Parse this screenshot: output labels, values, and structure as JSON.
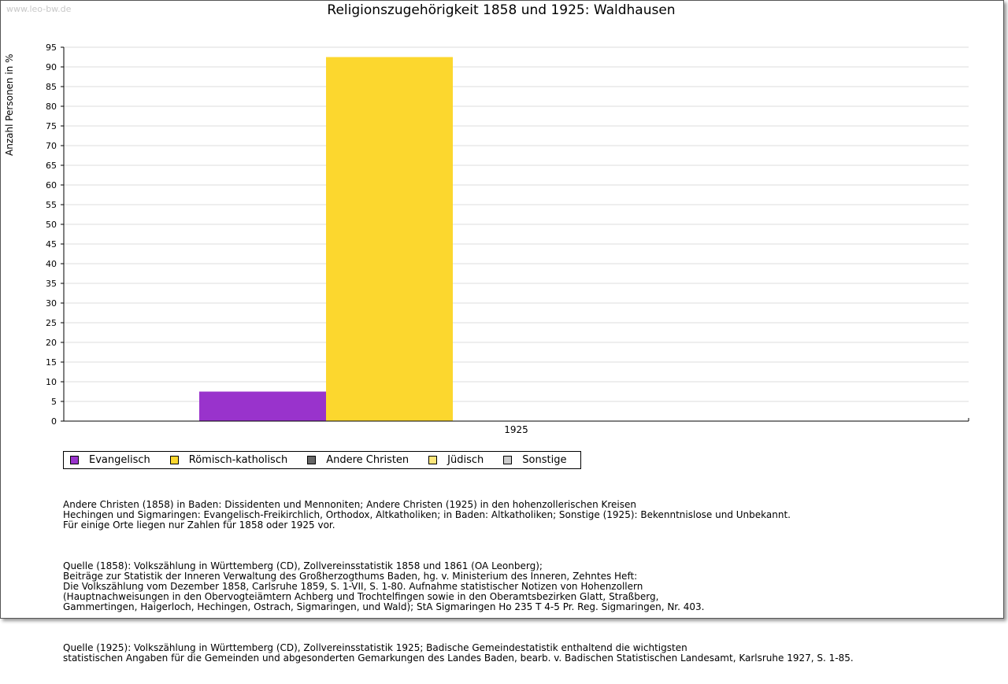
{
  "watermark": "www.leo-bw.de",
  "chart_data": {
    "type": "bar",
    "title": "Religionszugehörigkeit 1858 und 1925: Waldhausen",
    "xlabel": "",
    "ylabel": "Anzahl Personen in %",
    "categories": [
      "1925"
    ],
    "ylim": [
      0,
      95
    ],
    "yticks": [
      0,
      5,
      10,
      15,
      20,
      25,
      30,
      35,
      40,
      45,
      50,
      55,
      60,
      65,
      70,
      75,
      80,
      85,
      90,
      95
    ],
    "grid": true,
    "series": [
      {
        "name": "Evangelisch",
        "color": "#9933cc",
        "values": [
          7.5
        ]
      },
      {
        "name": "Römisch-katholisch",
        "color": "#fcd72e",
        "values": [
          92.5
        ]
      },
      {
        "name": "Andere Christen",
        "color": "#666666",
        "values": [
          0
        ]
      },
      {
        "name": "Jüdisch",
        "color": "#fde67a",
        "values": [
          0
        ]
      },
      {
        "name": "Sonstige",
        "color": "#cccccc",
        "values": [
          0
        ]
      }
    ]
  },
  "notes": [
    "Andere Christen (1858) in Baden: Dissidenten und Mennoniten; Andere Christen (1925) in den hohenzollerischen Kreisen\nHechingen und Sigmaringen: Evangelisch-Freikirchlich, Orthodox, Altkatholiken; in Baden: Altkatholiken; Sonstige (1925): Bekenntnislose und Unbekannt.\nFür einige Orte liegen nur Zahlen für 1858 oder 1925 vor.",
    "Quelle (1858): Volkszählung in Württemberg (CD), Zollvereinsstatistik 1858 und 1861 (OA Leonberg);\nBeiträge zur Statistik der Inneren Verwaltung des Großherzogthums Baden, hg. v. Ministerium des Inneren, Zehntes Heft:\nDie Volkszählung vom Dezember 1858, Carlsruhe 1859, S. 1-VII, S. 1-80. Aufnahme statistischer Notizen von Hohenzollern\n(Hauptnachweisungen in den Obervogteiämtern Achberg und Trochtelfingen sowie in den Oberamtsbezirken Glatt, Straßberg,\nGammertingen, Haigerloch, Hechingen, Ostrach, Sigmaringen, und Wald); StA Sigmaringen Ho 235 T 4-5 Pr. Reg. Sigmaringen, Nr. 403.",
    "Quelle (1925): Volkszählung in Württemberg (CD), Zollvereinsstatistik 1925; Badische Gemeindestatistik enthaltend die wichtigsten\nstatistischen Angaben für die Gemeinden und abgesonderten Gemarkungen des Landes Baden, bearb. v. Badischen Statistischen Landesamt, Karlsruhe 1927, S. 1-85."
  ]
}
